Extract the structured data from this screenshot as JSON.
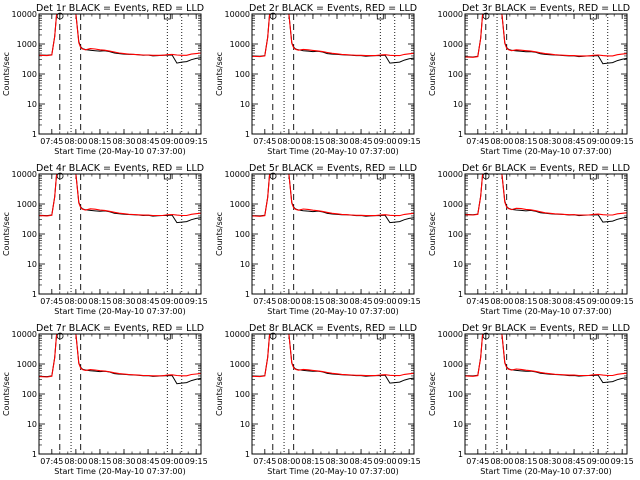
{
  "chart_data": {
    "type": "line",
    "layout": "3x3 grid",
    "x_tick_labels": [
      "07:45",
      "08:00",
      "08:15",
      "08:30",
      "08:45",
      "09:00",
      "09:15"
    ],
    "x_ticks_hours": [
      7.75,
      8.0,
      8.25,
      8.5,
      8.75,
      9.0,
      9.25
    ],
    "xlim_hours": [
      7.617,
      9.3
    ],
    "xlabel": "Start Time (20-May-10 07:37:00)",
    "ylabel": "Counts/sec",
    "y_scale": "log",
    "ylim": [
      1,
      10000
    ],
    "y_tick_labels": [
      "1",
      "10",
      "100",
      "1000",
      "10000"
    ],
    "y_ticks": [
      1,
      10,
      100,
      1000,
      10000
    ],
    "grid": false,
    "legend": "none",
    "colors": {
      "events": "#000000",
      "lld": "#ff0000"
    },
    "series_names": [
      "BLACK = Events",
      "RED = LLD"
    ],
    "vlines": [
      {
        "x": 7.833,
        "style": "dashed"
      },
      {
        "x": 7.95,
        "style": "dotted"
      },
      {
        "x": 8.05,
        "style": "dashed"
      },
      {
        "x": 8.95,
        "style": "dotted"
      },
      {
        "x": 9.1,
        "style": "dotted"
      }
    ],
    "x": [
      7.62,
      7.7,
      7.75,
      7.78,
      7.8,
      7.83,
      7.87,
      7.92,
      7.96,
      8.0,
      8.03,
      8.05,
      8.07,
      8.1,
      8.15,
      8.2,
      8.25,
      8.3,
      8.35,
      8.4,
      8.45,
      8.5,
      8.55,
      8.6,
      8.65,
      8.7,
      8.75,
      8.8,
      8.85,
      8.9,
      8.95,
      9.0,
      9.05,
      9.1,
      9.15,
      9.2,
      9.25,
      9.3
    ],
    "panels": [
      {
        "title": "Det 1r BLACK = Events, RED = LLD",
        "events": [
          430,
          420,
          440,
          1800,
          10000,
          10000,
          10000,
          10000,
          10000,
          10000,
          1200,
          800,
          700,
          650,
          620,
          600,
          580,
          600,
          560,
          500,
          480,
          460,
          450,
          450,
          440,
          420,
          430,
          400,
          410,
          420,
          420,
          430,
          230,
          250,
          260,
          300,
          330,
          350
        ],
        "lld": [
          420,
          410,
          430,
          1750,
          10000,
          10000,
          10000,
          10000,
          10000,
          10000,
          1100,
          760,
          680,
          640,
          700,
          680,
          640,
          620,
          580,
          540,
          500,
          480,
          460,
          450,
          440,
          430,
          430,
          420,
          420,
          420,
          440,
          450,
          430,
          420,
          420,
          460,
          480,
          500
        ]
      },
      {
        "title": "Det 2r BLACK = Events, RED = LLD",
        "events": [
          400,
          390,
          410,
          1700,
          10000,
          10000,
          10000,
          10000,
          10000,
          10000,
          1100,
          780,
          680,
          640,
          600,
          580,
          560,
          570,
          540,
          480,
          460,
          450,
          440,
          430,
          420,
          410,
          410,
          390,
          400,
          410,
          410,
          420,
          230,
          240,
          250,
          290,
          320,
          340
        ],
        "lld": [
          390,
          380,
          400,
          1650,
          10000,
          10000,
          10000,
          10000,
          10000,
          10000,
          1050,
          740,
          660,
          620,
          660,
          640,
          610,
          590,
          560,
          520,
          490,
          470,
          450,
          440,
          430,
          420,
          420,
          410,
          410,
          410,
          430,
          440,
          420,
          410,
          410,
          450,
          470,
          490
        ]
      },
      {
        "title": "Det 3r BLACK = Events, RED = LLD",
        "events": [
          380,
          370,
          390,
          1600,
          10000,
          10000,
          10000,
          10000,
          10000,
          10000,
          1100,
          760,
          660,
          620,
          590,
          570,
          550,
          560,
          530,
          470,
          450,
          440,
          430,
          420,
          410,
          400,
          400,
          380,
          390,
          400,
          400,
          410,
          220,
          230,
          240,
          280,
          310,
          330
        ],
        "lld": [
          370,
          360,
          380,
          1550,
          10000,
          10000,
          10000,
          10000,
          10000,
          10000,
          1050,
          720,
          640,
          600,
          640,
          620,
          600,
          580,
          550,
          510,
          480,
          460,
          440,
          430,
          420,
          410,
          410,
          400,
          400,
          400,
          420,
          430,
          410,
          400,
          400,
          440,
          460,
          480
        ]
      },
      {
        "title": "Det 4r BLACK = Events, RED = LLD",
        "events": [
          420,
          410,
          430,
          1750,
          10000,
          10000,
          10000,
          10000,
          10000,
          10000,
          1150,
          790,
          690,
          640,
          610,
          590,
          570,
          590,
          550,
          490,
          470,
          455,
          445,
          440,
          430,
          415,
          420,
          395,
          405,
          415,
          415,
          425,
          240,
          250,
          260,
          300,
          330,
          350
        ],
        "lld": [
          410,
          400,
          420,
          1700,
          10000,
          10000,
          10000,
          10000,
          10000,
          10000,
          1080,
          750,
          670,
          630,
          690,
          670,
          630,
          610,
          570,
          530,
          495,
          475,
          455,
          445,
          435,
          425,
          425,
          415,
          415,
          415,
          435,
          445,
          425,
          415,
          415,
          455,
          475,
          495
        ]
      },
      {
        "title": "Det 5r BLACK = Events, RED = LLD",
        "events": [
          410,
          400,
          420,
          1700,
          10000,
          10000,
          10000,
          10000,
          10000,
          10000,
          1120,
          780,
          680,
          630,
          600,
          580,
          560,
          580,
          545,
          485,
          465,
          450,
          440,
          435,
          425,
          410,
          415,
          390,
          400,
          410,
          410,
          420,
          240,
          250,
          260,
          300,
          330,
          350
        ],
        "lld": [
          400,
          390,
          410,
          1650,
          10000,
          10000,
          10000,
          10000,
          10000,
          10000,
          1060,
          740,
          660,
          620,
          680,
          660,
          620,
          600,
          565,
          525,
          490,
          470,
          450,
          440,
          430,
          420,
          420,
          410,
          410,
          410,
          430,
          440,
          420,
          410,
          410,
          450,
          470,
          490
        ]
      },
      {
        "title": "Det 6r BLACK = Events, RED = LLD",
        "events": [
          450,
          440,
          460,
          1850,
          10000,
          10000,
          10000,
          10000,
          10000,
          10000,
          1250,
          820,
          720,
          660,
          630,
          610,
          590,
          610,
          570,
          510,
          490,
          470,
          460,
          455,
          445,
          430,
          435,
          410,
          420,
          430,
          430,
          440,
          250,
          260,
          270,
          310,
          340,
          360
        ],
        "lld": [
          440,
          430,
          450,
          1800,
          10000,
          10000,
          10000,
          10000,
          10000,
          10000,
          1150,
          780,
          700,
          650,
          720,
          700,
          660,
          640,
          600,
          550,
          510,
          490,
          470,
          460,
          450,
          440,
          440,
          430,
          430,
          430,
          450,
          460,
          440,
          430,
          430,
          470,
          490,
          510
        ]
      },
      {
        "title": "Det 7r BLACK = Events, RED = LLD",
        "events": [
          390,
          380,
          400,
          1650,
          10000,
          10000,
          10000,
          10000,
          10000,
          10000,
          1080,
          770,
          670,
          630,
          600,
          580,
          560,
          570,
          540,
          480,
          460,
          450,
          440,
          430,
          420,
          405,
          410,
          385,
          395,
          405,
          405,
          415,
          220,
          230,
          240,
          280,
          310,
          330
        ],
        "lld": [
          380,
          370,
          390,
          1600,
          10000,
          10000,
          10000,
          10000,
          10000,
          10000,
          1040,
          730,
          650,
          610,
          650,
          630,
          600,
          580,
          550,
          510,
          480,
          460,
          445,
          435,
          425,
          415,
          415,
          405,
          405,
          405,
          425,
          435,
          415,
          405,
          405,
          445,
          465,
          485
        ]
      },
      {
        "title": "Det 8r BLACK = Events, RED = LLD",
        "events": [
          400,
          390,
          410,
          1700,
          10000,
          10000,
          10000,
          10000,
          10000,
          10000,
          1100,
          780,
          680,
          640,
          610,
          590,
          570,
          580,
          545,
          485,
          465,
          450,
          440,
          430,
          420,
          410,
          410,
          390,
          400,
          410,
          410,
          420,
          230,
          240,
          250,
          290,
          320,
          340
        ],
        "lld": [
          390,
          380,
          400,
          1650,
          10000,
          10000,
          10000,
          10000,
          10000,
          10000,
          1060,
          740,
          660,
          620,
          660,
          640,
          610,
          590,
          560,
          520,
          490,
          470,
          450,
          440,
          430,
          420,
          420,
          410,
          410,
          410,
          430,
          440,
          420,
          410,
          410,
          450,
          470,
          490
        ]
      },
      {
        "title": "Det 9r BLACK = Events, RED = LLD",
        "events": [
          410,
          400,
          420,
          1700,
          10000,
          10000,
          10000,
          10000,
          10000,
          10000,
          1130,
          790,
          690,
          640,
          610,
          590,
          570,
          580,
          545,
          490,
          470,
          455,
          445,
          435,
          425,
          410,
          415,
          395,
          405,
          415,
          415,
          425,
          240,
          250,
          260,
          300,
          330,
          350
        ],
        "lld": [
          400,
          390,
          410,
          1650,
          10000,
          10000,
          10000,
          10000,
          10000,
          10000,
          1070,
          750,
          670,
          630,
          680,
          660,
          620,
          600,
          565,
          525,
          495,
          475,
          455,
          445,
          435,
          425,
          425,
          415,
          415,
          415,
          435,
          445,
          425,
          415,
          415,
          455,
          475,
          495
        ]
      }
    ]
  }
}
